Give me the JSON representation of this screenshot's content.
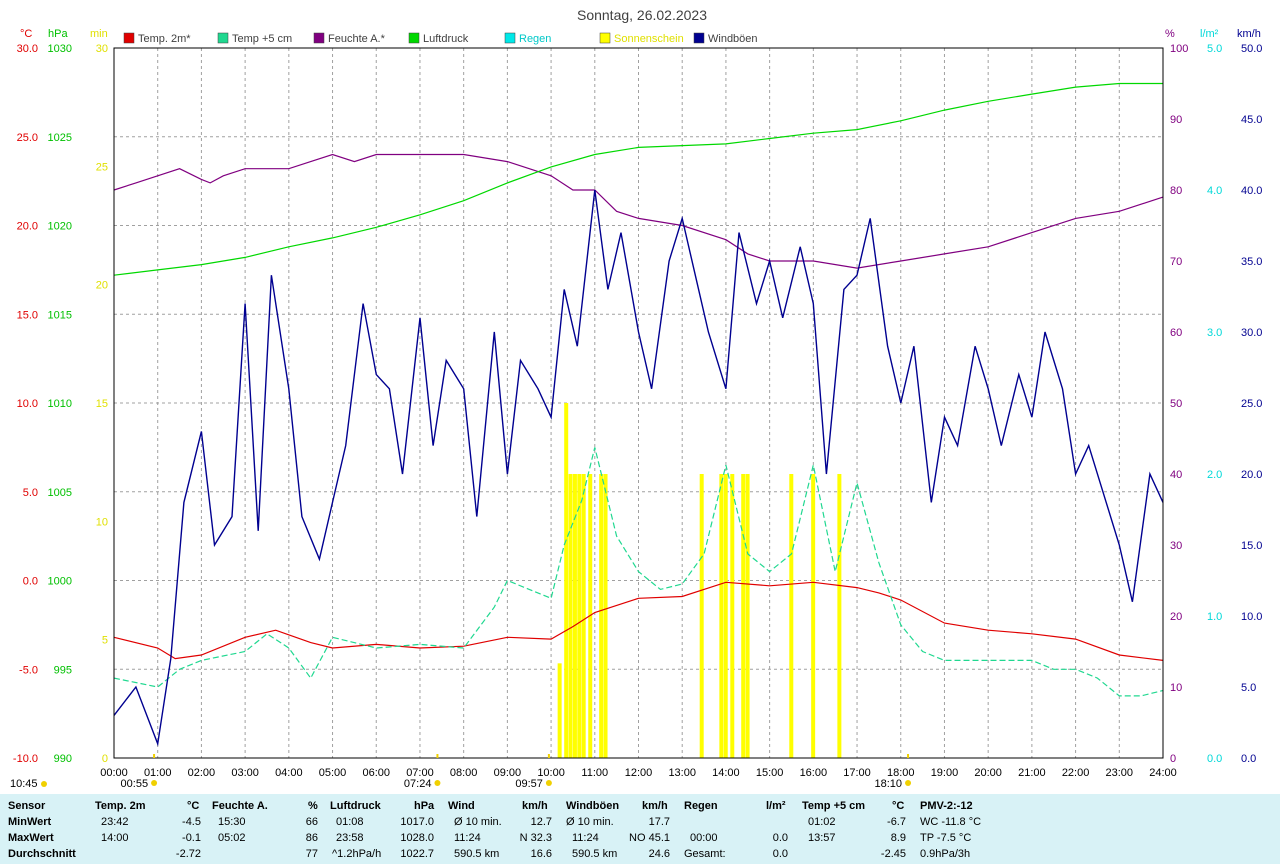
{
  "title": "Sonntag, 26.02.2023",
  "axes": {
    "temp_unit": "°C",
    "press_unit": "hPa",
    "sun_unit": "min",
    "hum_unit": "%",
    "rain_unit": "l/m²",
    "wind_unit": "km/h",
    "temp_ticks": [
      "30.0",
      "25.0",
      "20.0",
      "15.0",
      "10.0",
      "5.0",
      "0.0",
      "-5.0",
      "-10.0"
    ],
    "press_ticks": [
      "1030",
      "1025",
      "1020",
      "1015",
      "1010",
      "1005",
      "1000",
      "995",
      "990"
    ],
    "sun_ticks": [
      "30",
      "25",
      "20",
      "15",
      "10",
      "5",
      "0"
    ],
    "hum_ticks": [
      "100",
      "90",
      "80",
      "70",
      "60",
      "50",
      "40",
      "30",
      "20",
      "10",
      "0"
    ],
    "rain_ticks": [
      "5.0",
      "4.0",
      "3.0",
      "2.0",
      "1.0",
      "0.0"
    ],
    "wind_ticks": [
      "50.0",
      "45.0",
      "40.0",
      "35.0",
      "30.0",
      "25.0",
      "20.0",
      "15.0",
      "10.0",
      "5.0",
      "0.0"
    ],
    "x_ticks": [
      "00:00",
      "01:00",
      "02:00",
      "03:00",
      "04:00",
      "05:00",
      "06:00",
      "07:00",
      "08:00",
      "09:00",
      "10:00",
      "11:00",
      "12:00",
      "13:00",
      "14:00",
      "15:00",
      "16:00",
      "17:00",
      "18:00",
      "19:00",
      "20:00",
      "21:00",
      "22:00",
      "23:00",
      "24:00"
    ]
  },
  "legend": [
    {
      "label": "Temp. 2m*",
      "color": "#e00000"
    },
    {
      "label": "Temp +5 cm",
      "color": "#20d890"
    },
    {
      "label": "Feuchte A.*",
      "color": "#800080"
    },
    {
      "label": "Luftdruck",
      "color": "#00d800"
    },
    {
      "label": "Regen",
      "color": "#00e8e8"
    },
    {
      "label": "Sonnenschein",
      "color": "#ffff00"
    },
    {
      "label": "Windböen",
      "color": "#000090"
    }
  ],
  "markers": {
    "sunrise": "07:24",
    "sunset": "18:10",
    "moonset": "00:55",
    "moonrise": "09:57",
    "left_time": "10:45"
  },
  "chart_data": {
    "type": "line",
    "x_unit": "hours",
    "x_range": [
      0,
      24
    ],
    "series": [
      {
        "name": "Temp. 2m*",
        "axis": "°C",
        "color": "#e00000",
        "x": [
          0,
          1,
          1.4,
          2,
          3,
          3.7,
          4.5,
          5,
          6,
          7,
          8,
          9,
          10,
          10.5,
          11,
          12,
          13,
          14,
          15,
          16,
          17,
          17.5,
          18,
          19,
          20,
          21,
          22,
          23,
          24
        ],
        "y": [
          -3.2,
          -3.8,
          -4.4,
          -4.2,
          -3.2,
          -2.8,
          -3.5,
          -3.8,
          -3.6,
          -3.8,
          -3.7,
          -3.2,
          -3.3,
          -2.6,
          -1.8,
          -1.0,
          -0.9,
          -0.1,
          -0.3,
          -0.1,
          -0.4,
          -0.7,
          -1.1,
          -2.4,
          -2.8,
          -3.0,
          -3.3,
          -4.2,
          -4.5
        ]
      },
      {
        "name": "Temp +5 cm",
        "axis": "°C",
        "color": "#20d890",
        "x": [
          0,
          1,
          1.5,
          2,
          3,
          3.5,
          4,
          4.5,
          5,
          6,
          7,
          8,
          8.7,
          9,
          10,
          10.3,
          10.7,
          11,
          11.5,
          12,
          12.5,
          13,
          13.5,
          14,
          14.5,
          15,
          15.5,
          16,
          16.5,
          17,
          17.5,
          18,
          18.5,
          19,
          20,
          21,
          21.5,
          22,
          22.5,
          23,
          23.5,
          24
        ],
        "y": [
          -5.5,
          -6.0,
          -5.0,
          -4.5,
          -4.0,
          -3.0,
          -3.8,
          -5.5,
          -3.2,
          -3.8,
          -3.6,
          -3.8,
          -1.5,
          0.0,
          -1.0,
          2.0,
          4.5,
          7.5,
          2.5,
          0.5,
          -0.5,
          -0.2,
          1.5,
          6.5,
          1.5,
          0.5,
          1.5,
          6.5,
          0.5,
          5.5,
          1.0,
          -2.5,
          -4.0,
          -4.5,
          -4.5,
          -4.5,
          -5.0,
          -5.0,
          -5.5,
          -6.5,
          -6.5,
          -6.2
        ]
      },
      {
        "name": "Feuchte A.*",
        "axis": "%",
        "color": "#800080",
        "x": [
          0,
          0.5,
          1,
          1.5,
          2,
          2.2,
          2.5,
          3,
          4,
          4.5,
          5,
          5.5,
          6,
          7,
          8,
          9,
          10,
          10.5,
          11,
          11.5,
          12,
          13,
          14,
          14.5,
          15,
          16,
          17,
          18,
          19,
          20,
          21,
          22,
          23,
          24
        ],
        "y": [
          80,
          81,
          82,
          83,
          81.5,
          81,
          82,
          83,
          83,
          84,
          85,
          84,
          85,
          85,
          85,
          84,
          82,
          80,
          80,
          77,
          76,
          75,
          73,
          71,
          70,
          70,
          69,
          70,
          71,
          72,
          74,
          76,
          77,
          79
        ]
      },
      {
        "name": "Luftdruck",
        "axis": "hPa",
        "color": "#00d800",
        "x": [
          0,
          1,
          2,
          3,
          4,
          5,
          6,
          7,
          8,
          9,
          10,
          11,
          12,
          13,
          14,
          15,
          16,
          17,
          18,
          19,
          20,
          21,
          22,
          23,
          24
        ],
        "y": [
          1017.2,
          1017.5,
          1017.8,
          1018.2,
          1018.8,
          1019.3,
          1019.9,
          1020.6,
          1021.4,
          1022.4,
          1023.3,
          1024.0,
          1024.4,
          1024.5,
          1024.6,
          1024.9,
          1025.2,
          1025.4,
          1025.9,
          1026.5,
          1027.0,
          1027.4,
          1027.8,
          1028.0,
          1028.0
        ]
      },
      {
        "name": "Windböen",
        "axis": "km/h",
        "color": "#000090",
        "x": [
          0,
          0.5,
          1,
          1.3,
          1.6,
          2,
          2.3,
          2.7,
          3,
          3.3,
          3.6,
          4,
          4.3,
          4.7,
          5,
          5.3,
          5.7,
          6,
          6.3,
          6.6,
          7,
          7.3,
          7.6,
          8,
          8.3,
          8.7,
          9,
          9.3,
          9.7,
          10,
          10.3,
          10.6,
          11,
          11.3,
          11.6,
          12,
          12.3,
          12.7,
          13,
          13.3,
          13.6,
          14,
          14.3,
          14.7,
          15,
          15.3,
          15.7,
          16,
          16.3,
          16.7,
          17,
          17.3,
          17.7,
          18,
          18.3,
          18.7,
          19,
          19.3,
          19.7,
          20,
          20.3,
          20.7,
          21,
          21.3,
          21.7,
          22,
          22.3,
          22.7,
          23,
          23.3,
          23.7,
          24
        ],
        "y": [
          3,
          5,
          1,
          7,
          18,
          23,
          15,
          17,
          32,
          16,
          34,
          26,
          17,
          14,
          18,
          22,
          32,
          27,
          26,
          20,
          31,
          22,
          28,
          26,
          17,
          30,
          20,
          28,
          26,
          24,
          33,
          29,
          40,
          33,
          37,
          30,
          26,
          35,
          38,
          34,
          30,
          26,
          37,
          32,
          35,
          31,
          36,
          32,
          20,
          33,
          34,
          38,
          29,
          25,
          29,
          18,
          24,
          22,
          29,
          26,
          22,
          27,
          24,
          30,
          26,
          20,
          22,
          18,
          15,
          11,
          20,
          18
        ]
      }
    ],
    "sunshine": {
      "name": "Sonnenschein",
      "axis": "min",
      "color": "#ffff00",
      "x": [
        10.15,
        10.3,
        10.4,
        10.5,
        10.6,
        10.7,
        10.85,
        11.1,
        11.2,
        13.4,
        13.85,
        13.95,
        14.1,
        14.35,
        14.45,
        15.45,
        15.95,
        16.55
      ],
      "y": [
        4,
        15,
        12,
        12,
        12,
        12,
        12,
        12,
        12,
        12,
        12,
        12,
        12,
        12,
        12,
        12,
        12,
        12
      ]
    }
  },
  "stats": {
    "headers": {
      "sensor": "Sensor",
      "temp": "Temp. 2m",
      "temp_u": "°C",
      "hum": "Feuchte A.",
      "hum_u": "%",
      "press": "Luftdruck",
      "press_u": "hPa",
      "wind": "Wind",
      "wind_u": "km/h",
      "gust": "Windböen",
      "gust_u": "km/h",
      "rain": "Regen",
      "rain_u": "l/m²",
      "t5": "Temp +5 cm",
      "t5_u": "°C",
      "pmv": "PMV-2:-12"
    },
    "rows": {
      "min": "MinWert",
      "max": "MaxWert",
      "avg": "Durchschnitt"
    },
    "temp": {
      "min_t": "23:42",
      "min_v": "-4.5",
      "max_t": "14:00",
      "max_v": "-0.1",
      "avg": "-2.72"
    },
    "hum": {
      "min_t": "15:30",
      "min_v": "66",
      "max_t": "05:02",
      "max_v": "86",
      "avg": "77"
    },
    "press": {
      "min_t": "01:08",
      "min_v": "1017.0",
      "max_t": "23:58",
      "max_v": "1028.0",
      "trend": "^1.2hPa/h",
      "avg": "1022.7"
    },
    "wind": {
      "r1a": "Ø 10 min.",
      "r1b": "12.7",
      "r2a": "11:24",
      "r2b": "N 32.3",
      "r3a": "590.5 km",
      "r3b": "16.6"
    },
    "gust": {
      "r1a": "Ø 10 min.",
      "r1b": "17.7",
      "r2a": "11:24",
      "r2b": "NO 45.1",
      "r3a": "590.5 km",
      "r3b": "24.6"
    },
    "rain": {
      "r2a": "00:00",
      "r2b": "0.0",
      "r3a": "Gesamt:",
      "r3b": "0.0"
    },
    "t5": {
      "min_t": "01:02",
      "min_v": "-6.7",
      "max_t": "13:57",
      "max_v": "8.9",
      "avg": "-2.45"
    },
    "pmv": {
      "r1": "WC -11.8 °C",
      "r2": "TP -7.5 °C",
      "r3": "0.9hPa/3h"
    }
  }
}
